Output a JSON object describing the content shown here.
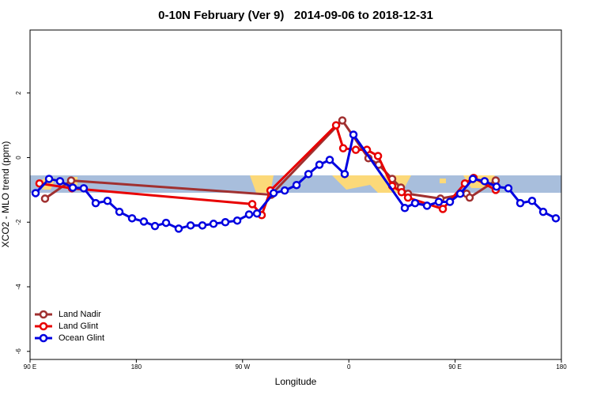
{
  "chart_data": {
    "type": "line",
    "title": "0-10N February (Ver 9)   2014-09-06 to 2018-12-31",
    "x_label": "Longitude",
    "y_label": "XCO2 - MLO trend (ppm)",
    "xlim": [
      90,
      540
    ],
    "ylim": [
      -6.25,
      3.95
    ],
    "xticks": [
      {
        "value": 90,
        "label": "90 E"
      },
      180,
      {
        "value": 270,
        "label": "90 W"
      },
      {
        "value": 360,
        "label": "0"
      },
      {
        "value": 450,
        "label": "90 E"
      },
      {
        "value": 540,
        "label": "180"
      }
    ],
    "yticks": [
      -6,
      -4,
      -2,
      0,
      2
    ],
    "legend": "bottom-left",
    "series": [
      {
        "name": "Land Nadir",
        "color": "#a03030",
        "x": [
          102.7,
          124.8,
          294.2,
          354.5,
          376.6,
          385.3,
          396.7,
          404.1,
          410.1,
          437.6,
          459.7,
          462.3,
          484.4
        ],
        "values": [
          -1.27,
          -0.71,
          -1.15,
          1.15,
          -0.02,
          -0.22,
          -0.66,
          -0.93,
          -1.12,
          -1.27,
          -1.12,
          -1.24,
          -0.71
        ]
      },
      {
        "name": "Land Glint",
        "color": "#e80000",
        "x": [
          98,
          125.5,
          278.2,
          286.2,
          293.6,
          349.2,
          355.2,
          365.9,
          375.3,
          384.7,
          396.7,
          404.7,
          410.1,
          439.6,
          458.3,
          465.7,
          484.4
        ],
        "values": [
          -0.8,
          -0.95,
          -1.44,
          -1.78,
          -1.02,
          1.0,
          0.29,
          0.24,
          0.24,
          0.05,
          -0.88,
          -1.07,
          -1.24,
          -1.59,
          -0.8,
          -0.63,
          -1.0
        ]
      },
      {
        "name": "Ocean Glint",
        "color": "#0000e0",
        "x": [
          94.7,
          106.1,
          115.4,
          126.2,
          135.5,
          145.6,
          155.6,
          165.7,
          176.4,
          186.4,
          195.8,
          205.2,
          215.9,
          226,
          236,
          245.4,
          255.4,
          265.5,
          275.5,
          282.2,
          296.3,
          305.7,
          315.7,
          325.8,
          335.1,
          343.8,
          356.5,
          363.9,
          407.4,
          416.1,
          426.2,
          436.2,
          445.6,
          454.3,
          465,
          475,
          485.1,
          495.1,
          505.2,
          515.2,
          524.6,
          535.3
        ],
        "values": [
          -1.1,
          -0.66,
          -0.73,
          -0.93,
          -0.95,
          -1.41,
          -1.34,
          -1.68,
          -1.88,
          -1.98,
          -2.12,
          -2.02,
          -2.2,
          -2.1,
          -2.1,
          -2.05,
          -2.0,
          -1.95,
          -1.76,
          -1.73,
          -1.1,
          -1.02,
          -0.85,
          -0.51,
          -0.22,
          -0.07,
          -0.51,
          0.71,
          -1.56,
          -1.41,
          -1.49,
          -1.37,
          -1.37,
          -1.12,
          -0.66,
          -0.73,
          -0.9,
          -0.95,
          -1.41,
          -1.34,
          -1.68,
          -1.88
        ]
      }
    ]
  }
}
